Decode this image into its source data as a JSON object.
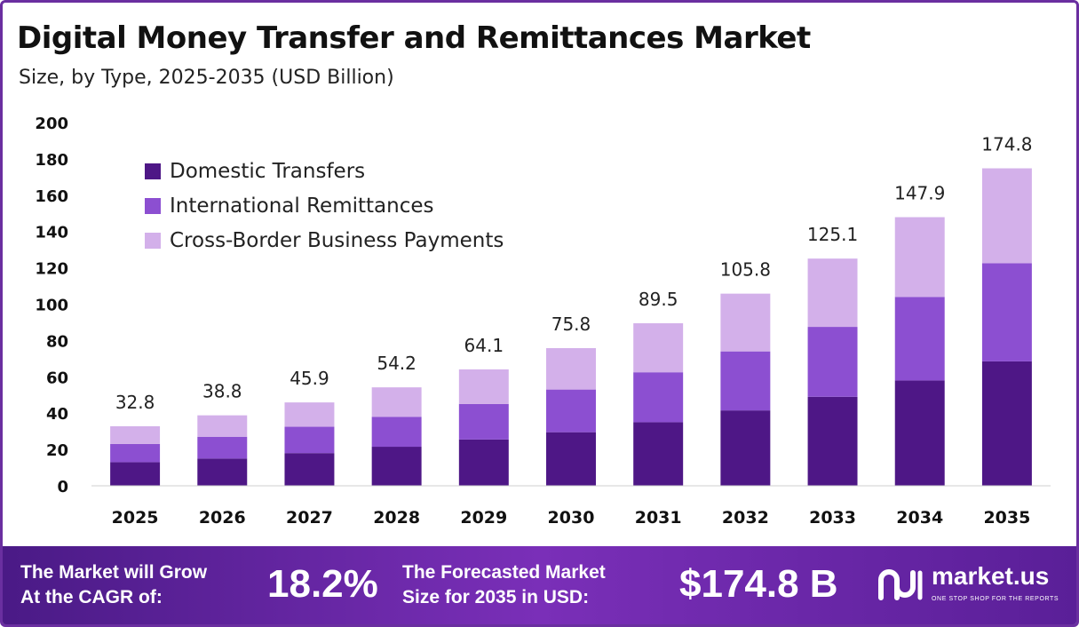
{
  "header": {
    "title": "Digital Money Transfer and Remittances Market",
    "subtitle": "Size, by Type, 2025-2035 (USD Billion)"
  },
  "colors": {
    "domestic": "#4e1786",
    "international": "#8c4fd1",
    "crossborder": "#d3b0ea",
    "footer_start": "#4a1a86",
    "footer_end": "#7a2fb8"
  },
  "chart_data": {
    "type": "bar",
    "stacked": true,
    "categories": [
      "2025",
      "2026",
      "2027",
      "2028",
      "2029",
      "2030",
      "2031",
      "2032",
      "2033",
      "2034",
      "2035"
    ],
    "series": [
      {
        "name": "Domestic Transfers",
        "values": [
          13,
          15,
          18,
          21.5,
          25.5,
          29.5,
          35,
          41.5,
          49,
          58,
          68.5
        ]
      },
      {
        "name": "International Remittances",
        "values": [
          10,
          12,
          14.5,
          16.5,
          19.5,
          23.5,
          27.5,
          32.5,
          38.5,
          46,
          54
        ]
      },
      {
        "name": "Cross-Border Business Payments",
        "values": [
          9.8,
          11.8,
          13.4,
          16.2,
          19.1,
          22.8,
          27,
          31.8,
          37.6,
          43.9,
          52.3
        ]
      }
    ],
    "totals": [
      "32.8",
      "38.8",
      "45.9",
      "54.2",
      "64.1",
      "75.8",
      "89.5",
      "105.8",
      "125.1",
      "147.9",
      "174.8"
    ],
    "ylim": [
      0,
      200
    ],
    "yticks": [
      "0",
      "20",
      "40",
      "60",
      "80",
      "100",
      "120",
      "140",
      "160",
      "180",
      "200"
    ],
    "legend_position": "top-left",
    "grid": false
  },
  "footer": {
    "cagr_label_line1": "The Market will Grow",
    "cagr_label_line2": "At the CAGR of:",
    "cagr_value": "18.2%",
    "forecast_label_line1": "The Forecasted Market",
    "forecast_label_line2": "Size for 2035 in USD:",
    "forecast_value": "$174.8 B",
    "brand_name": "market.us",
    "brand_tagline": "ONE STOP SHOP FOR THE REPORTS"
  }
}
